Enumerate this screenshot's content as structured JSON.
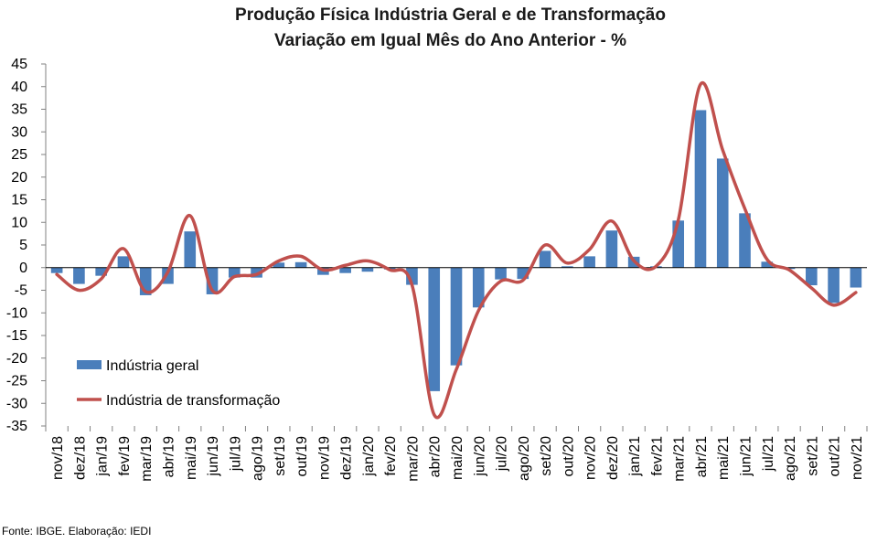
{
  "chart_data": {
    "type": "bar+line",
    "title": "Produção Física Indústria Geral e de Transformação",
    "subtitle": "Variação em Igual Mês do Ano Anterior - %",
    "categories": [
      "nov/18",
      "dez/18",
      "jan/19",
      "fev/19",
      "mar/19",
      "abr/19",
      "mai/19",
      "jun/19",
      "jul/19",
      "ago/19",
      "set/19",
      "out/19",
      "nov/19",
      "dez/19",
      "jan/20",
      "fev/20",
      "mar/20",
      "abr/20",
      "mai/20",
      "jun/20",
      "jul/20",
      "ago/20",
      "set/20",
      "out/20",
      "nov/20",
      "dez/20",
      "jan/21",
      "fev/21",
      "mar/21",
      "abr/21",
      "mai/21",
      "jun/21",
      "jul/21",
      "ago/21",
      "set/21",
      "out/21",
      "nov/21"
    ],
    "series": [
      {
        "name": "Indústria geral",
        "type": "bar",
        "color": "#4a7ebb",
        "values": [
          -1.2,
          -3.6,
          -1.8,
          2.5,
          -6.1,
          -3.6,
          8.0,
          -5.9,
          -2.2,
          -2.2,
          1.1,
          1.2,
          -1.6,
          -1.2,
          -0.9,
          -0.4,
          -3.8,
          -27.3,
          -21.6,
          -8.8,
          -2.6,
          -2.5,
          3.7,
          0.3,
          2.5,
          8.2,
          2.4,
          0.3,
          10.4,
          34.8,
          24.1,
          12.0,
          1.3,
          -0.3,
          -3.9,
          -7.8,
          -4.4
        ]
      },
      {
        "name": "Indústria de transformação",
        "type": "line",
        "color": "#c0504d",
        "values": [
          -1.5,
          -5.0,
          -2.5,
          4.2,
          -5.3,
          -1.0,
          11.5,
          -5.0,
          -2.0,
          -1.5,
          1.5,
          2.5,
          -0.5,
          0.5,
          1.5,
          -0.5,
          -3.8,
          -32.5,
          -22.5,
          -9.5,
          -3.0,
          -2.8,
          5.0,
          1.0,
          4.0,
          10.3,
          1.5,
          0.3,
          10.5,
          40.5,
          26.0,
          13.0,
          1.8,
          -0.5,
          -4.5,
          -8.3,
          -5.5
        ]
      }
    ],
    "ylim": [
      -35,
      45
    ],
    "yticks": [
      45,
      40,
      35,
      30,
      25,
      20,
      15,
      10,
      5,
      0,
      -5,
      -10,
      -15,
      -20,
      -25,
      -30,
      -35
    ],
    "legend_position": "lower-left inside plot",
    "grid": false
  },
  "source_note": "Fonte: IBGE. Elaboração: IEDI"
}
